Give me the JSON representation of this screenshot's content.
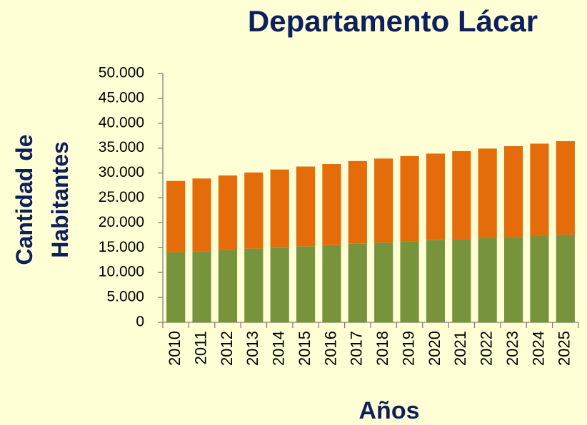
{
  "chart_data": {
    "type": "stacked_bar",
    "title": "Departamento Lácar",
    "y_label": "Cantidad de Habitantes",
    "x_label": "Años",
    "categories": [
      "2010",
      "2011",
      "2012",
      "2013",
      "2014",
      "2015",
      "2016",
      "2017",
      "2018",
      "2019",
      "2020",
      "2021",
      "2022",
      "2023",
      "2024",
      "2025"
    ],
    "series": [
      {
        "color": "#77933c",
        "values": [
          14100,
          14300,
          14600,
          14800,
          15000,
          15300,
          15500,
          15800,
          16000,
          16200,
          16500,
          16700,
          16900,
          17100,
          17400,
          17600
        ]
      },
      {
        "color": "#e46c0a",
        "values": [
          14300,
          14600,
          14900,
          15300,
          15700,
          16000,
          16300,
          16600,
          16900,
          17200,
          17400,
          17700,
          18000,
          18300,
          18500,
          18800
        ]
      }
    ],
    "ylim": [
      0,
      50000
    ],
    "yticks": [
      0,
      {
        "value": 5000,
        "label": "5.000"
      },
      {
        "value": 10000,
        "label": "10.000"
      },
      {
        "value": 15000,
        "label": "15.000"
      },
      {
        "value": 20000,
        "label": "20.000"
      },
      {
        "value": 25000,
        "label": "25.000"
      },
      {
        "value": 30000,
        "label": "30.000"
      },
      {
        "value": 35000,
        "label": "35.000"
      },
      {
        "value": 40000,
        "label": "40.000"
      },
      {
        "value": 45000,
        "label": "45.000"
      },
      {
        "value": 50000,
        "label": "50.000"
      }
    ],
    "grid": false
  }
}
